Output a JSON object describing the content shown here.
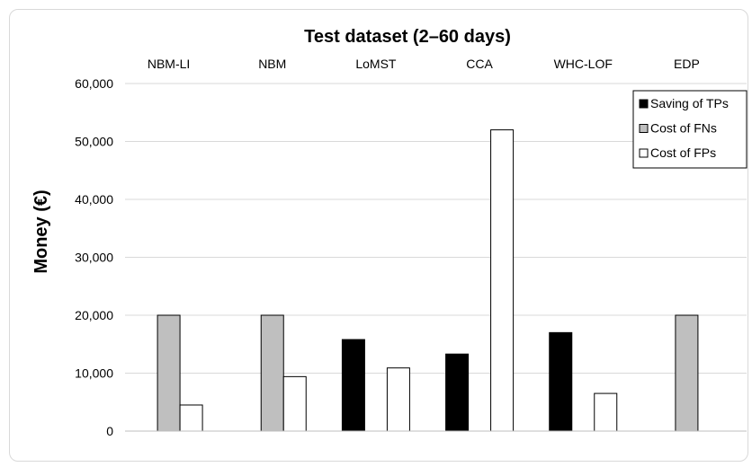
{
  "chart_data": {
    "type": "bar",
    "title": "Test dataset (2–60 days)",
    "ylabel": "Money (€)",
    "xlabel": "",
    "categories": [
      "NBM-LI",
      "NBM",
      "LoMST",
      "CCA",
      "WHC-LOF",
      "EDP"
    ],
    "ylim": [
      0,
      60000
    ],
    "yticks": [
      0,
      10000,
      20000,
      30000,
      40000,
      50000,
      60000
    ],
    "ytick_labels": [
      "0",
      "10,000",
      "20,000",
      "30,000",
      "40,000",
      "50,000",
      "60,000"
    ],
    "grid": true,
    "legend_position": "top-right",
    "series": [
      {
        "name": "Saving of TPs",
        "color": "#000000",
        "values": [
          0,
          0,
          15800,
          13300,
          17000,
          0
        ]
      },
      {
        "name": "Cost of FNs",
        "color": "#bfbfbf",
        "values": [
          20000,
          20000,
          0,
          0,
          0,
          20000
        ]
      },
      {
        "name": "Cost of FPs",
        "color": "#ffffff",
        "values": [
          4500,
          9400,
          10900,
          52000,
          6500,
          0
        ]
      }
    ]
  }
}
